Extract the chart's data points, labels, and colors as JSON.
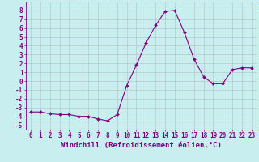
{
  "x": [
    0,
    1,
    2,
    3,
    4,
    5,
    6,
    7,
    8,
    9,
    10,
    11,
    12,
    13,
    14,
    15,
    16,
    17,
    18,
    19,
    20,
    21,
    22,
    23
  ],
  "y": [
    -3.5,
    -3.5,
    -3.7,
    -3.8,
    -3.8,
    -4.0,
    -4.0,
    -4.3,
    -4.5,
    -3.8,
    -0.5,
    1.8,
    4.3,
    6.3,
    7.9,
    8.0,
    5.5,
    2.5,
    0.5,
    -0.3,
    -0.3,
    1.3,
    1.5,
    1.5
  ],
  "xlim": [
    -0.5,
    23.5
  ],
  "ylim": [
    -5.5,
    9.0
  ],
  "yticks": [
    -5,
    -4,
    -3,
    -2,
    -1,
    0,
    1,
    2,
    3,
    4,
    5,
    6,
    7,
    8
  ],
  "xticks": [
    0,
    1,
    2,
    3,
    4,
    5,
    6,
    7,
    8,
    9,
    10,
    11,
    12,
    13,
    14,
    15,
    16,
    17,
    18,
    19,
    20,
    21,
    22,
    23
  ],
  "xlabel": "Windchill (Refroidissement éolien,°C)",
  "line_color": "#800080",
  "marker": "D",
  "marker_size": 2.0,
  "background_color": "#c8eef0",
  "grid_color": "#b0b0b0",
  "tick_fontsize": 5.5,
  "xlabel_fontsize": 6.5,
  "linewidth": 0.8
}
